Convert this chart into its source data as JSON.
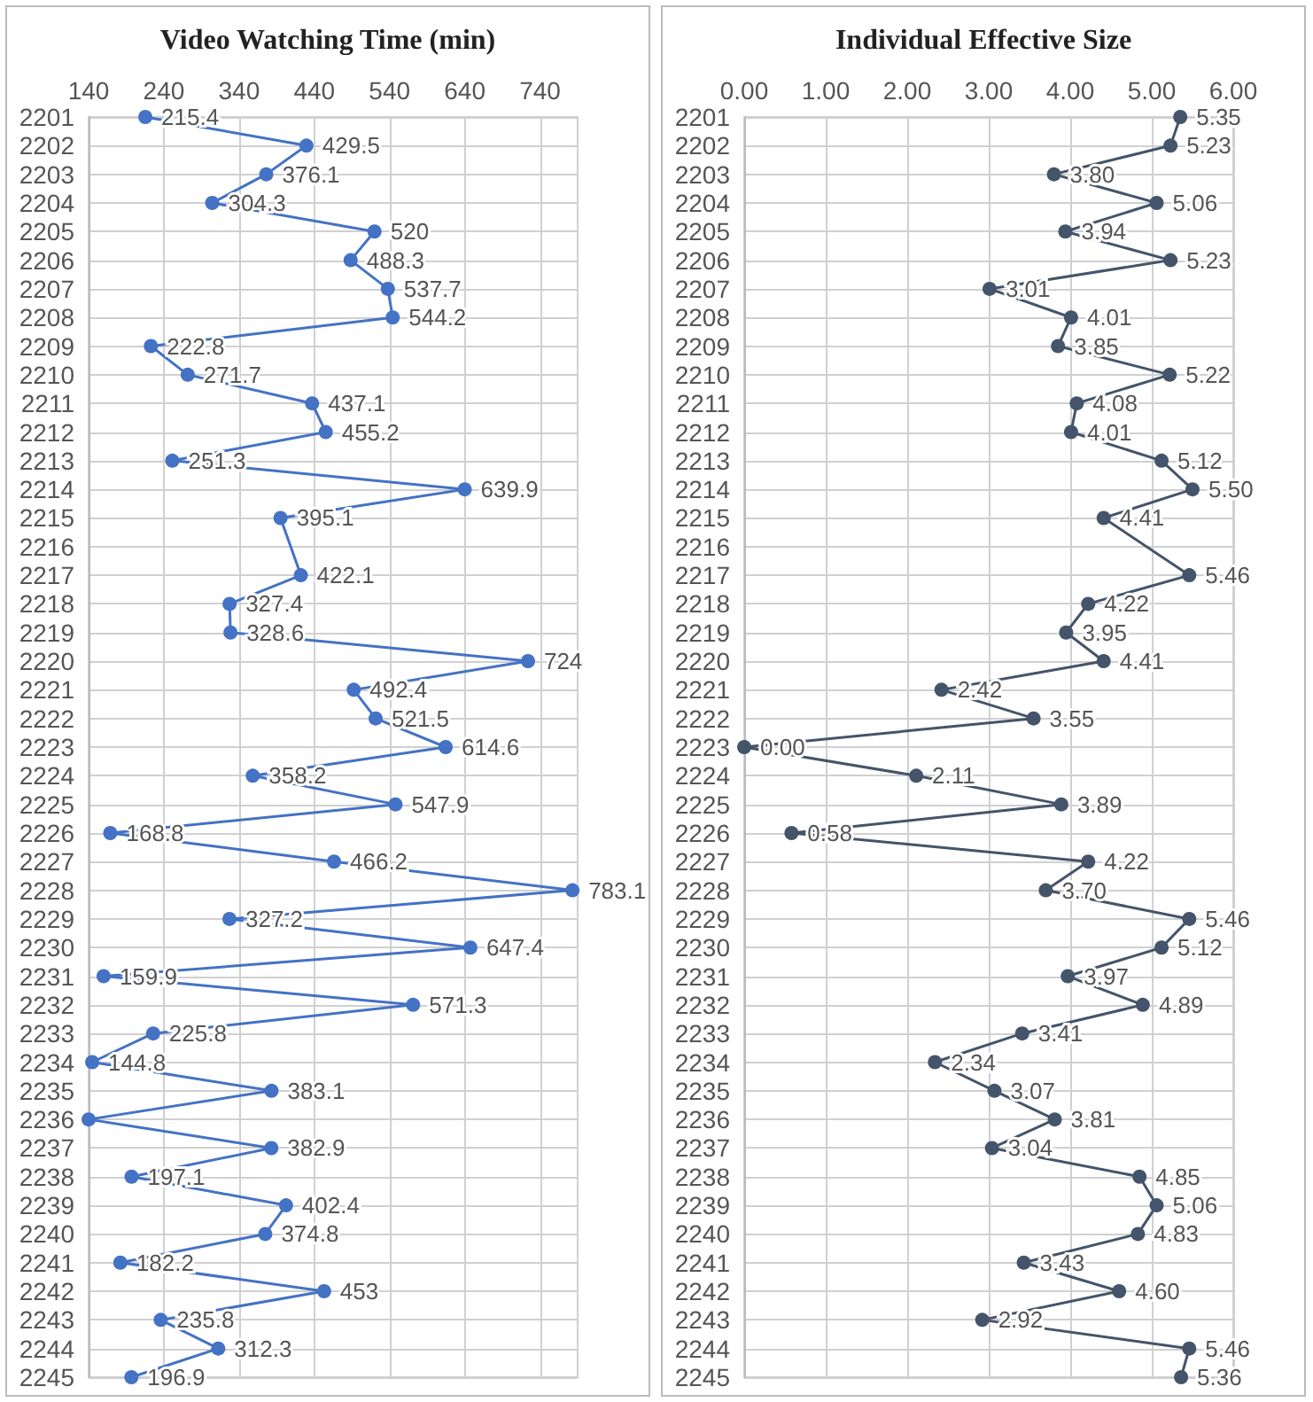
{
  "chart_data": [
    {
      "type": "line",
      "orientation": "horizontal",
      "title": "Video Watching Time (min)",
      "color": "#4472c4",
      "marker": "circle",
      "grid": true,
      "categories": [
        "2201",
        "2202",
        "2203",
        "2204",
        "2205",
        "2206",
        "2207",
        "2208",
        "2209",
        "2210",
        "2211",
        "2212",
        "2213",
        "2214",
        "2215",
        "2216",
        "2217",
        "2218",
        "2219",
        "2220",
        "2221",
        "2222",
        "2223",
        "2224",
        "2225",
        "2226",
        "2227",
        "2228",
        "2229",
        "2230",
        "2231",
        "2232",
        "2233",
        "2234",
        "2235",
        "2236",
        "2237",
        "2238",
        "2239",
        "2240",
        "2241",
        "2242",
        "2243",
        "2244",
        "2245"
      ],
      "values": [
        215.4,
        429.5,
        376.1,
        304.3,
        520,
        488.3,
        537.7,
        544.2,
        222.8,
        271.7,
        437.1,
        455.2,
        251.3,
        639.9,
        395.1,
        null,
        422.1,
        327.4,
        328.6,
        724,
        492.4,
        521.5,
        614.6,
        358.2,
        547.9,
        168.8,
        466.2,
        783.1,
        327.2,
        647.4,
        159.9,
        571.3,
        225.8,
        144.8,
        383.1,
        140,
        382.9,
        197.1,
        402.4,
        374.8,
        182.2,
        453,
        235.8,
        312.3,
        196.9
      ],
      "value_labels": [
        "215.4",
        "429.5",
        "376.1",
        "304.3",
        "520",
        "488.3",
        "537.7",
        "544.2",
        "222.8",
        "271.7",
        "437.1",
        "455.2",
        "251.3",
        "639.9",
        "395.1",
        null,
        "422.1",
        "327.4",
        "328.6",
        "724",
        "492.4",
        "521.5",
        "614.6",
        "358.2",
        "547.9",
        "168.8",
        "466.2",
        "783.1",
        "327.2",
        "647.4",
        "159.9",
        "571.3",
        "225.8",
        "144.8",
        "383.1",
        null,
        "382.9",
        "197.1",
        "402.4",
        "374.8",
        "182.2",
        "453",
        "235.8",
        "312.3",
        "196.9"
      ],
      "xlim": [
        140,
        790
      ],
      "xticks": [
        140,
        240,
        340,
        440,
        540,
        640,
        740
      ]
    },
    {
      "type": "line",
      "orientation": "horizontal",
      "title": "Individual Effective Size",
      "color": "#44546a",
      "marker": "circle",
      "grid": true,
      "categories": [
        "2201",
        "2202",
        "2203",
        "2204",
        "2205",
        "2206",
        "2207",
        "2208",
        "2209",
        "2210",
        "2211",
        "2212",
        "2213",
        "2214",
        "2215",
        "2216",
        "2217",
        "2218",
        "2219",
        "2220",
        "2221",
        "2222",
        "2223",
        "2224",
        "2225",
        "2226",
        "2227",
        "2228",
        "2229",
        "2230",
        "2231",
        "2232",
        "2233",
        "2234",
        "2235",
        "2236",
        "2237",
        "2238",
        "2239",
        "2240",
        "2241",
        "2242",
        "2243",
        "2244",
        "2245"
      ],
      "values": [
        5.35,
        5.23,
        3.8,
        5.06,
        3.94,
        5.23,
        3.01,
        4.01,
        3.85,
        5.22,
        4.08,
        4.01,
        5.12,
        5.5,
        4.41,
        null,
        5.46,
        4.22,
        3.95,
        4.41,
        2.42,
        3.55,
        0.0,
        2.11,
        3.89,
        0.58,
        4.22,
        3.7,
        5.46,
        5.12,
        3.97,
        4.89,
        3.41,
        2.34,
        3.07,
        3.81,
        3.04,
        4.85,
        5.06,
        4.83,
        3.43,
        4.6,
        2.92,
        5.46,
        5.36
      ],
      "value_labels": [
        "5.35",
        "5.23",
        "3.80",
        "5.06",
        "3.94",
        "5.23",
        "3.01",
        "4.01",
        "3.85",
        "5.22",
        "4.08",
        "4.01",
        "5.12",
        "5.50",
        "4.41",
        null,
        "5.46",
        "4.22",
        "3.95",
        "4.41",
        "2.42",
        "3.55",
        "0.00",
        "2.11",
        "3.89",
        "0.58",
        "4.22",
        "3.70",
        "5.46",
        "5.12",
        "3.97",
        "4.89",
        "3.41",
        "2.34",
        "3.07",
        "3.81",
        "3.04",
        "4.85",
        "5.06",
        "4.83",
        "3.43",
        "4.60",
        "2.92",
        "5.46",
        "5.36"
      ],
      "xlim": [
        0,
        6
      ],
      "xticks": [
        {
          "value": 0,
          "label": "0.00"
        },
        {
          "value": 1,
          "label": "1.00"
        },
        {
          "value": 2,
          "label": "2.00"
        },
        {
          "value": 3,
          "label": "3.00"
        },
        {
          "value": 4,
          "label": "4.00"
        },
        {
          "value": 5,
          "label": "5.00"
        },
        {
          "value": 6,
          "label": "6.00"
        }
      ]
    }
  ]
}
